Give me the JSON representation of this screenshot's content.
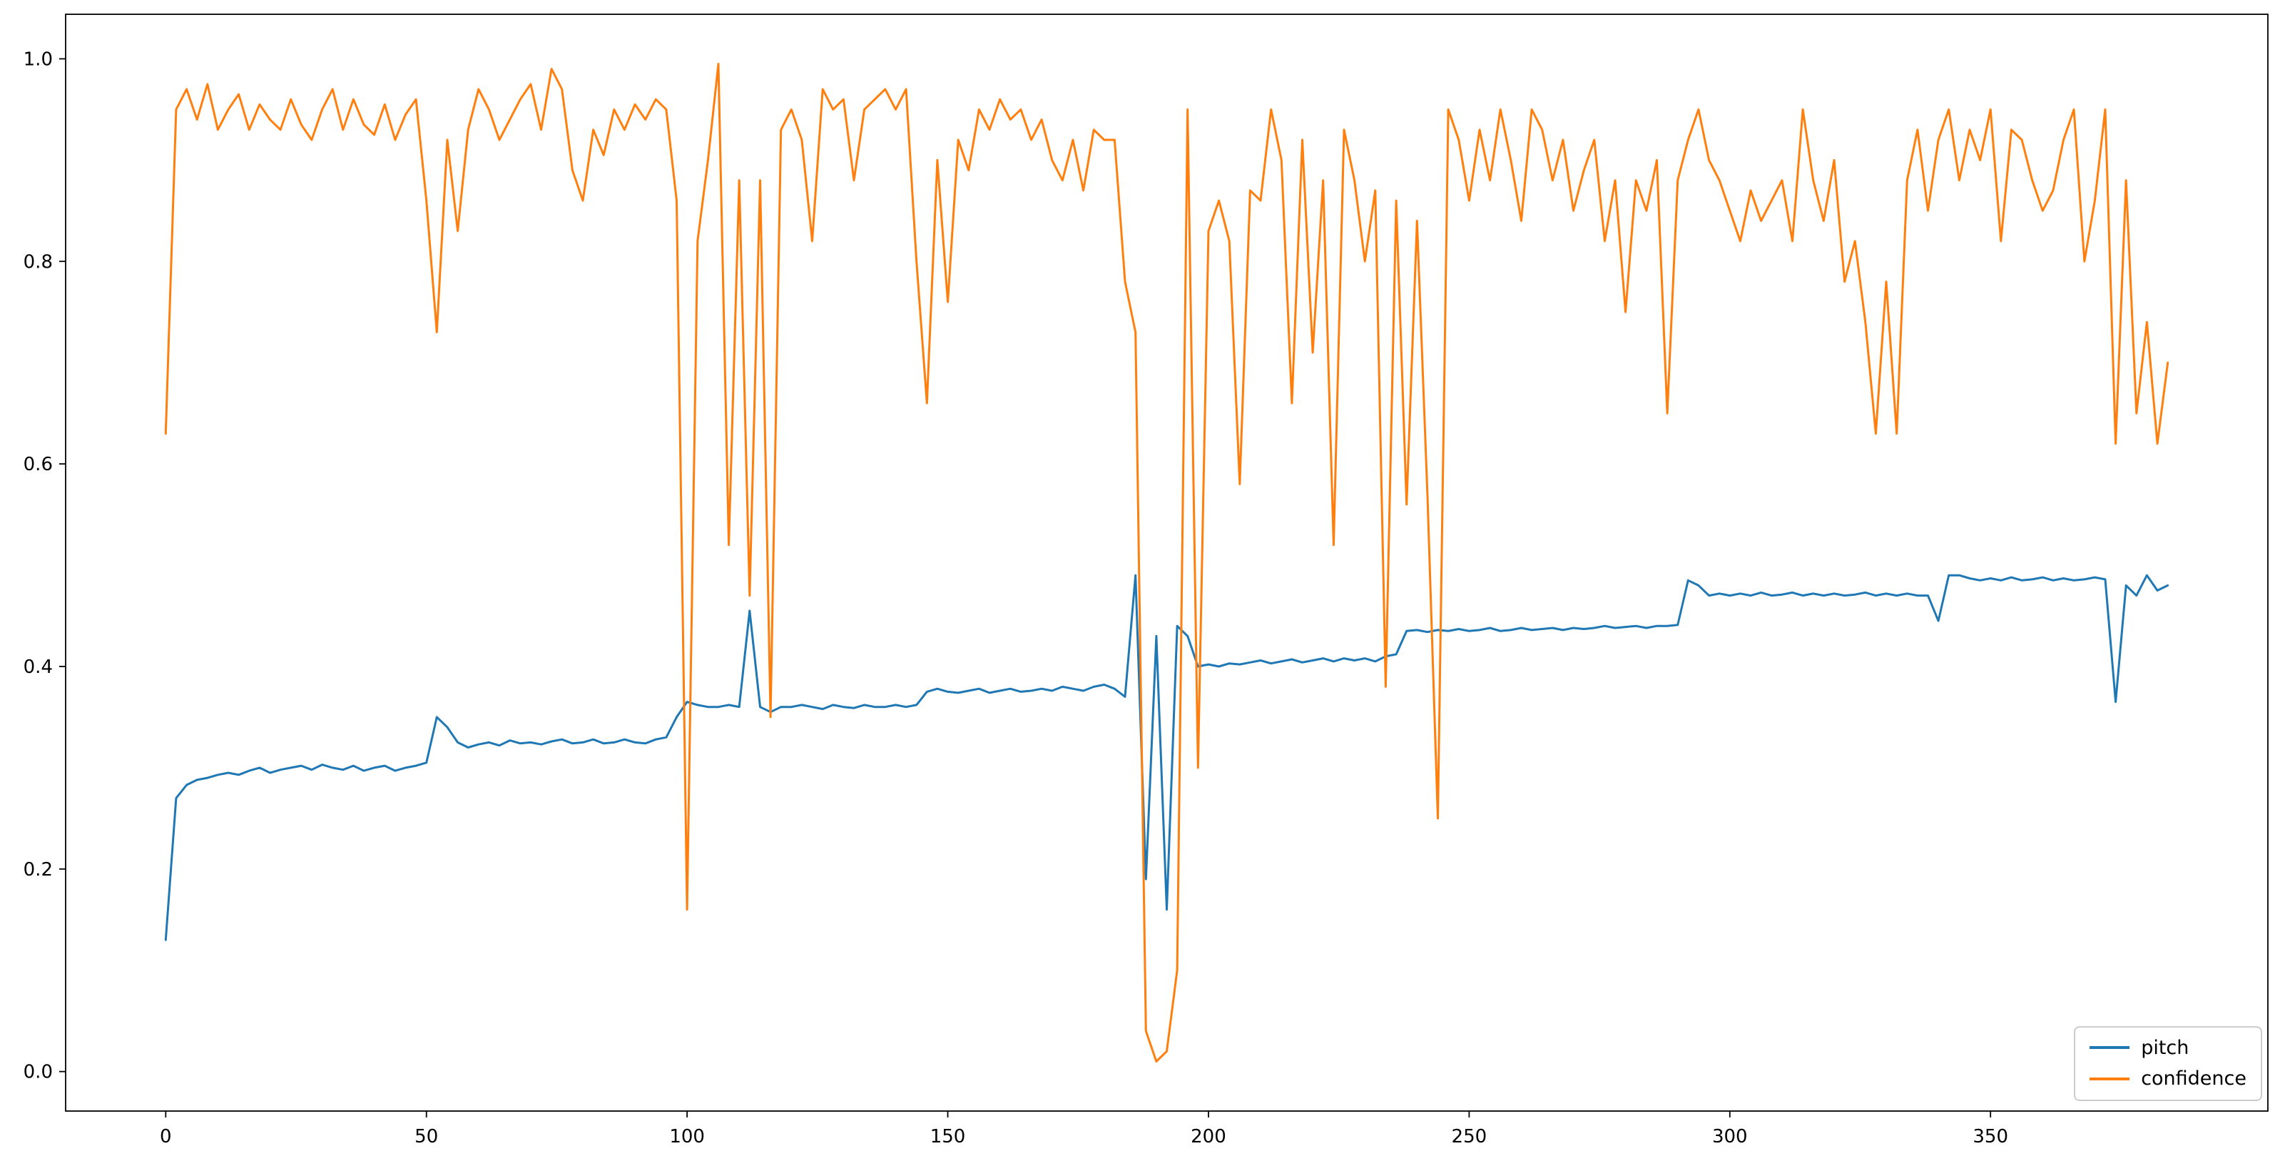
{
  "figure": {
    "background": "#ffffff",
    "title": "",
    "axes": {
      "spine_color": "#000000",
      "tick_color": "#000000",
      "grid": false
    },
    "legend": {
      "position": "lower right",
      "items": [
        {
          "label": "pitch",
          "color": "#1f77b4"
        },
        {
          "label": "confidence",
          "color": "#ff7f0e"
        }
      ]
    }
  },
  "chart_data": {
    "type": "line",
    "title": "",
    "xlabel": "",
    "ylabel": "",
    "grid": false,
    "legend_position": "lower right",
    "xlim": [
      -19.2,
      403.2
    ],
    "ylim": [
      -0.039,
      1.044
    ],
    "xticks": [
      0,
      50,
      100,
      150,
      200,
      250,
      300,
      350
    ],
    "yticks": [
      0.0,
      0.2,
      0.4,
      0.6,
      0.8,
      1.0
    ],
    "x": [
      0,
      2,
      4,
      6,
      8,
      10,
      12,
      14,
      16,
      18,
      20,
      22,
      24,
      26,
      28,
      30,
      32,
      34,
      36,
      38,
      40,
      42,
      44,
      46,
      48,
      50,
      52,
      54,
      56,
      58,
      60,
      62,
      64,
      66,
      68,
      70,
      72,
      74,
      76,
      78,
      80,
      82,
      84,
      86,
      88,
      90,
      92,
      94,
      96,
      98,
      100,
      102,
      104,
      106,
      108,
      110,
      112,
      114,
      116,
      118,
      120,
      122,
      124,
      126,
      128,
      130,
      132,
      134,
      136,
      138,
      140,
      142,
      144,
      146,
      148,
      150,
      152,
      154,
      156,
      158,
      160,
      162,
      164,
      166,
      168,
      170,
      172,
      174,
      176,
      178,
      180,
      182,
      184,
      186,
      188,
      190,
      192,
      194,
      196,
      198,
      200,
      202,
      204,
      206,
      208,
      210,
      212,
      214,
      216,
      218,
      220,
      222,
      224,
      226,
      228,
      230,
      232,
      234,
      236,
      238,
      240,
      242,
      244,
      246,
      248,
      250,
      252,
      254,
      256,
      258,
      260,
      262,
      264,
      266,
      268,
      270,
      272,
      274,
      276,
      278,
      280,
      282,
      284,
      286,
      288,
      290,
      292,
      294,
      296,
      298,
      300,
      302,
      304,
      306,
      308,
      310,
      312,
      314,
      316,
      318,
      320,
      322,
      324,
      326,
      328,
      330,
      332,
      334,
      336,
      338,
      340,
      342,
      344,
      346,
      348,
      350,
      352,
      354,
      356,
      358,
      360,
      362,
      364,
      366,
      368,
      370,
      372,
      374,
      376,
      378,
      380,
      382,
      384
    ],
    "series": [
      {
        "name": "pitch",
        "color": "#1f77b4",
        "values": [
          0.13,
          0.27,
          0.283,
          0.288,
          0.29,
          0.293,
          0.295,
          0.293,
          0.297,
          0.3,
          0.295,
          0.298,
          0.3,
          0.302,
          0.298,
          0.303,
          0.3,
          0.298,
          0.302,
          0.297,
          0.3,
          0.302,
          0.297,
          0.3,
          0.302,
          0.305,
          0.35,
          0.34,
          0.325,
          0.32,
          0.323,
          0.325,
          0.322,
          0.327,
          0.324,
          0.325,
          0.323,
          0.326,
          0.328,
          0.324,
          0.325,
          0.328,
          0.324,
          0.325,
          0.328,
          0.325,
          0.324,
          0.328,
          0.33,
          0.35,
          0.365,
          0.362,
          0.36,
          0.36,
          0.362,
          0.36,
          0.455,
          0.36,
          0.355,
          0.36,
          0.36,
          0.362,
          0.36,
          0.358,
          0.362,
          0.36,
          0.359,
          0.362,
          0.36,
          0.36,
          0.362,
          0.36,
          0.362,
          0.375,
          0.378,
          0.375,
          0.374,
          0.376,
          0.378,
          0.374,
          0.376,
          0.378,
          0.375,
          0.376,
          0.378,
          0.376,
          0.38,
          0.378,
          0.376,
          0.38,
          0.382,
          0.378,
          0.37,
          0.49,
          0.19,
          0.43,
          0.16,
          0.44,
          0.43,
          0.4,
          0.402,
          0.4,
          0.403,
          0.402,
          0.404,
          0.406,
          0.403,
          0.405,
          0.407,
          0.404,
          0.406,
          0.408,
          0.405,
          0.408,
          0.406,
          0.408,
          0.405,
          0.41,
          0.412,
          0.435,
          0.436,
          0.434,
          0.436,
          0.435,
          0.437,
          0.435,
          0.436,
          0.438,
          0.435,
          0.436,
          0.438,
          0.436,
          0.437,
          0.438,
          0.436,
          0.438,
          0.437,
          0.438,
          0.44,
          0.438,
          0.439,
          0.44,
          0.438,
          0.44,
          0.44,
          0.441,
          0.485,
          0.48,
          0.47,
          0.472,
          0.47,
          0.472,
          0.47,
          0.473,
          0.47,
          0.471,
          0.473,
          0.47,
          0.472,
          0.47,
          0.472,
          0.47,
          0.471,
          0.473,
          0.47,
          0.472,
          0.47,
          0.472,
          0.47,
          0.47,
          0.445,
          0.49,
          0.49,
          0.487,
          0.485,
          0.487,
          0.485,
          0.488,
          0.485,
          0.486,
          0.488,
          0.485,
          0.487,
          0.485,
          0.486,
          0.488,
          0.486,
          0.365,
          0.48,
          0.47,
          0.49,
          0.475,
          0.48
        ]
      },
      {
        "name": "confidence",
        "color": "#ff7f0e",
        "values": [
          0.63,
          0.95,
          0.97,
          0.94,
          0.975,
          0.93,
          0.95,
          0.965,
          0.93,
          0.955,
          0.94,
          0.93,
          0.96,
          0.935,
          0.92,
          0.95,
          0.97,
          0.93,
          0.96,
          0.935,
          0.925,
          0.955,
          0.92,
          0.945,
          0.96,
          0.86,
          0.73,
          0.92,
          0.83,
          0.93,
          0.97,
          0.95,
          0.92,
          0.94,
          0.96,
          0.975,
          0.93,
          0.99,
          0.97,
          0.89,
          0.86,
          0.93,
          0.905,
          0.95,
          0.93,
          0.955,
          0.94,
          0.96,
          0.95,
          0.86,
          0.16,
          0.82,
          0.9,
          0.995,
          0.52,
          0.88,
          0.47,
          0.88,
          0.35,
          0.93,
          0.95,
          0.92,
          0.82,
          0.97,
          0.95,
          0.96,
          0.88,
          0.95,
          0.96,
          0.97,
          0.95,
          0.97,
          0.8,
          0.66,
          0.9,
          0.76,
          0.92,
          0.89,
          0.95,
          0.93,
          0.96,
          0.94,
          0.95,
          0.92,
          0.94,
          0.9,
          0.88,
          0.92,
          0.87,
          0.93,
          0.92,
          0.92,
          0.78,
          0.73,
          0.04,
          0.01,
          0.02,
          0.1,
          0.95,
          0.3,
          0.83,
          0.86,
          0.82,
          0.58,
          0.87,
          0.86,
          0.95,
          0.9,
          0.66,
          0.92,
          0.71,
          0.88,
          0.52,
          0.93,
          0.88,
          0.8,
          0.87,
          0.38,
          0.86,
          0.56,
          0.84,
          0.57,
          0.25,
          0.95,
          0.92,
          0.86,
          0.93,
          0.88,
          0.95,
          0.9,
          0.84,
          0.95,
          0.93,
          0.88,
          0.92,
          0.85,
          0.89,
          0.92,
          0.82,
          0.88,
          0.75,
          0.88,
          0.85,
          0.9,
          0.65,
          0.88,
          0.92,
          0.95,
          0.9,
          0.88,
          0.85,
          0.82,
          0.87,
          0.84,
          0.86,
          0.88,
          0.82,
          0.95,
          0.88,
          0.84,
          0.9,
          0.78,
          0.82,
          0.74,
          0.63,
          0.78,
          0.63,
          0.88,
          0.93,
          0.85,
          0.92,
          0.95,
          0.88,
          0.93,
          0.9,
          0.95,
          0.82,
          0.93,
          0.92,
          0.88,
          0.85,
          0.87,
          0.92,
          0.95,
          0.8,
          0.86,
          0.95,
          0.62,
          0.88,
          0.65,
          0.74,
          0.62,
          0.7
        ]
      }
    ]
  }
}
